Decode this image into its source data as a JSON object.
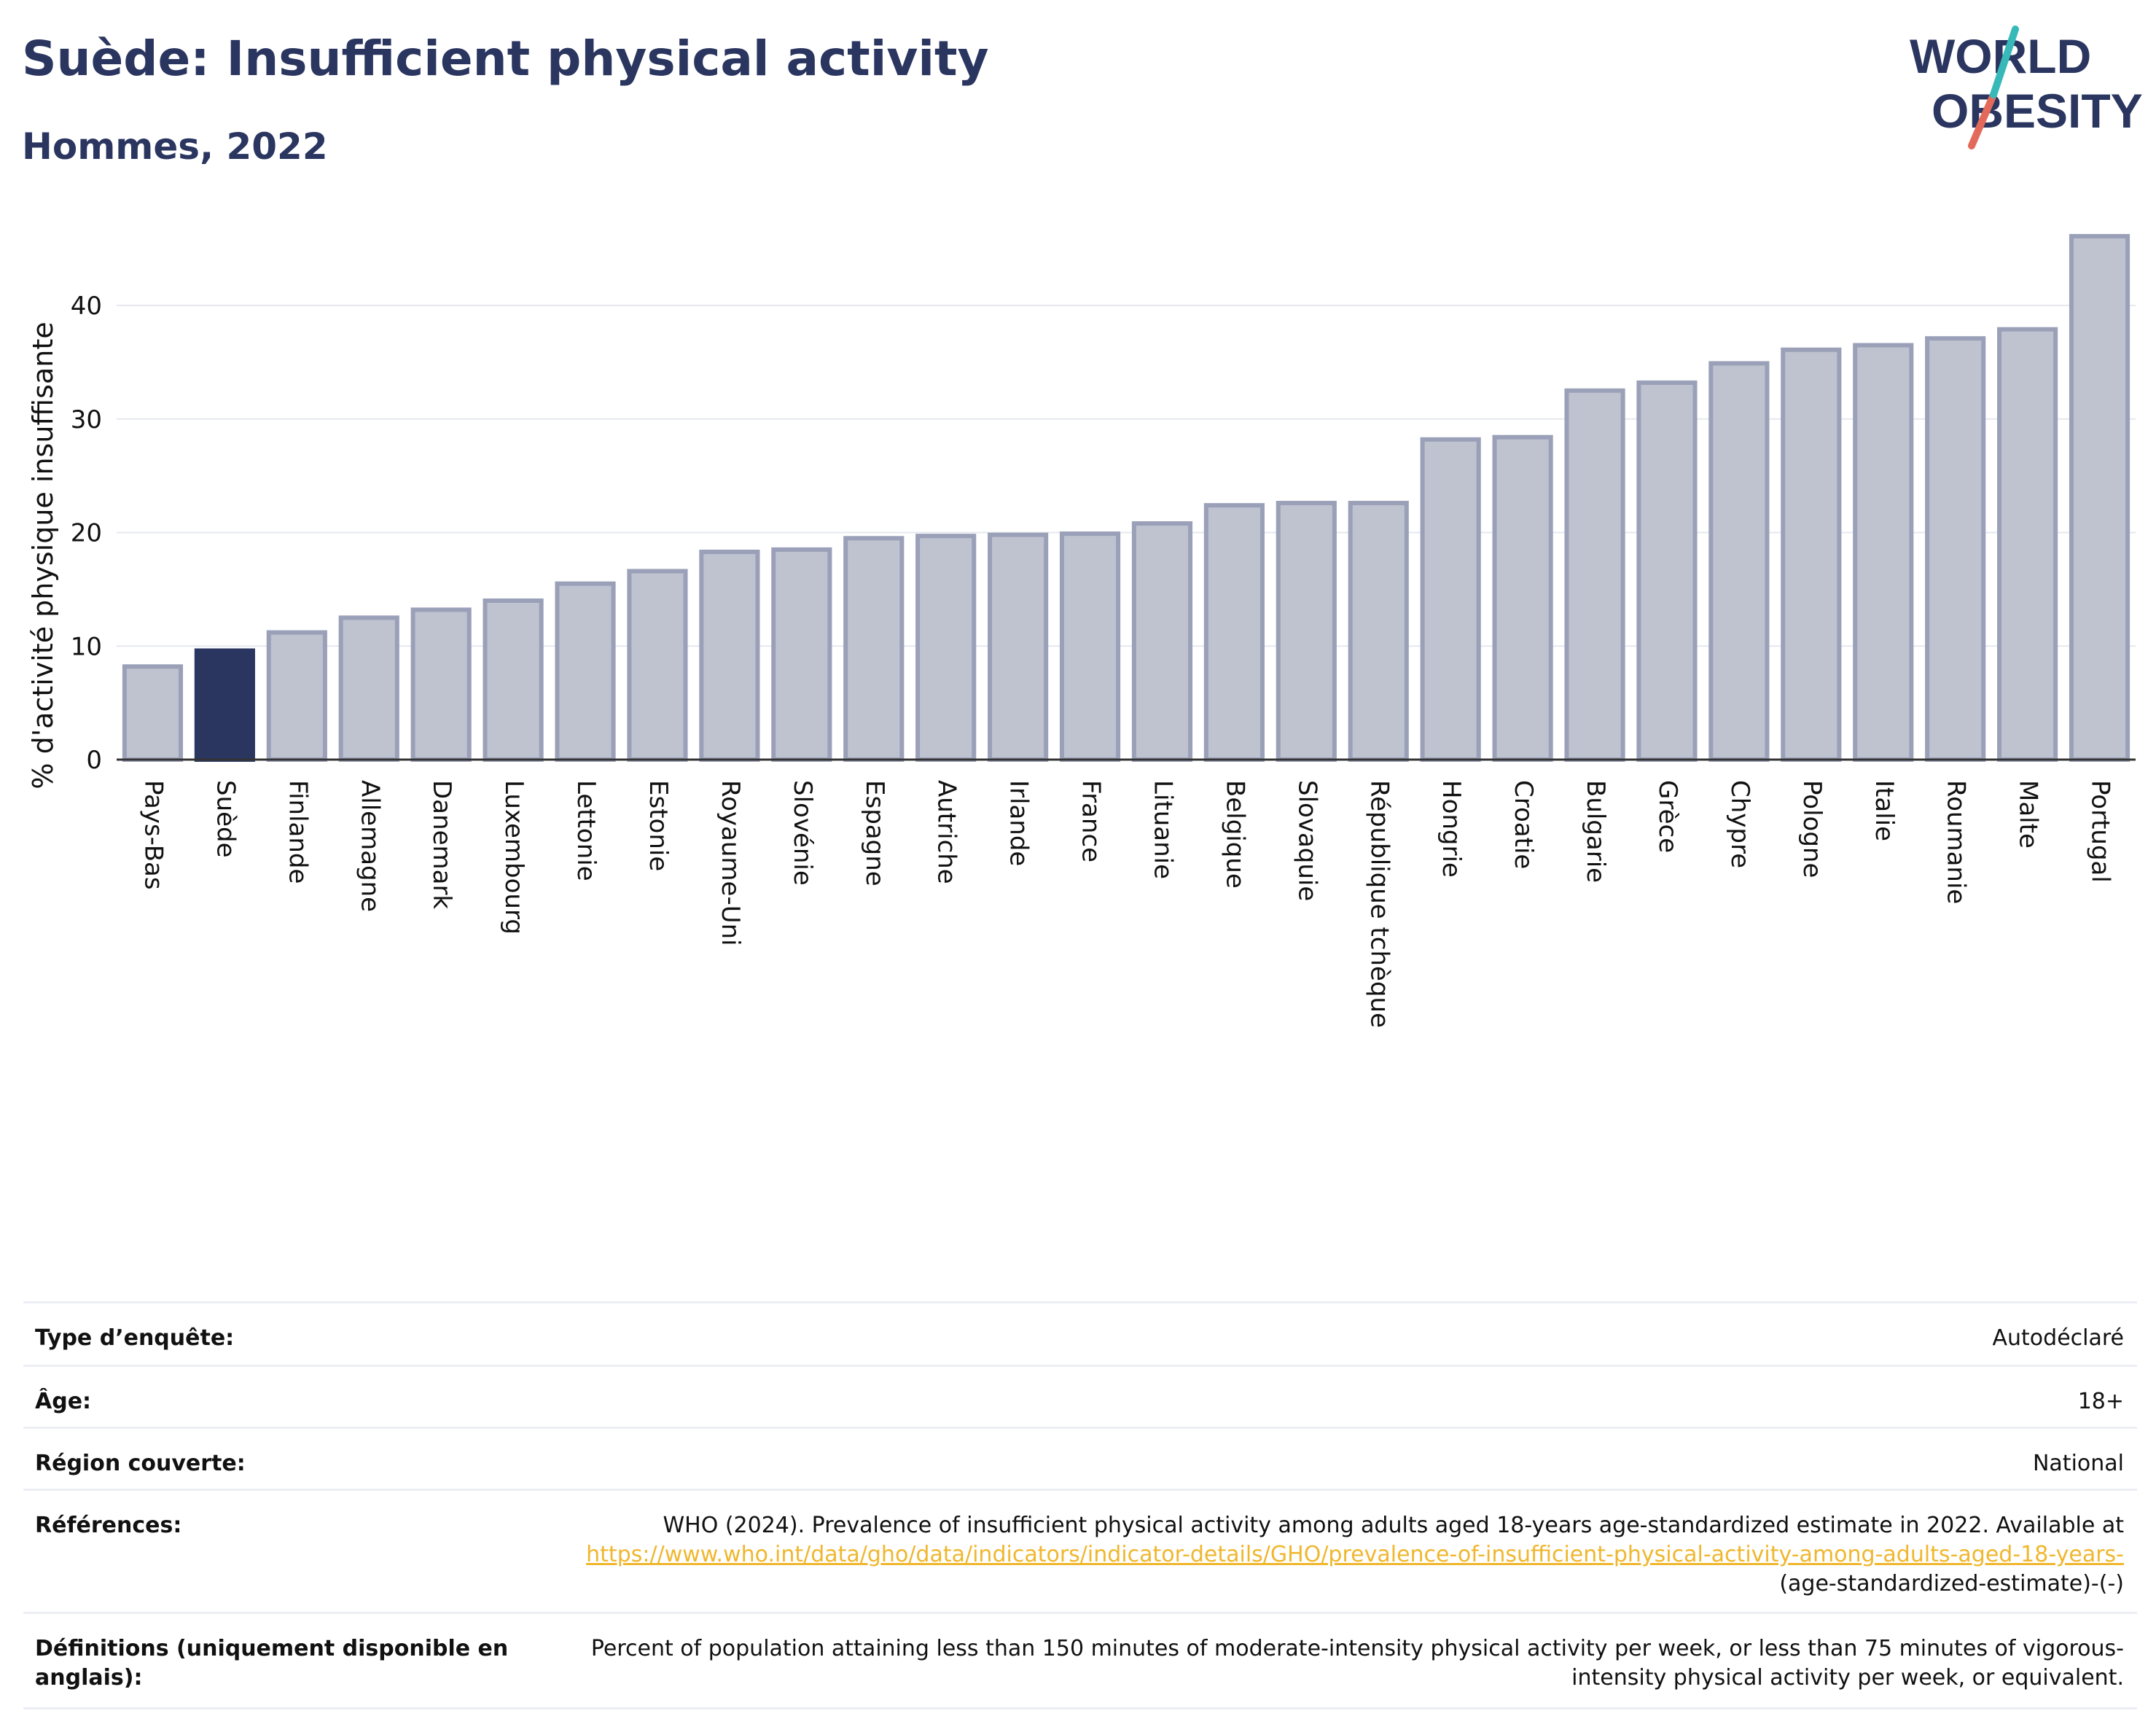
{
  "title": "Suède: Insufficient physical activity",
  "subtitle": "Hommes, 2022",
  "logo": {
    "line1": "WORLD",
    "line2": "OBESITY"
  },
  "colors": {
    "accent": "#2b3660",
    "bar_fill": "#bfc2cf",
    "bar_stroke": "#9aa0b8",
    "highlight": "#2b3660",
    "link": "#f0b72e",
    "logo_teal": "#37b9b9",
    "logo_red": "#e36a5a"
  },
  "chart_data": {
    "type": "bar",
    "title": "Suède: Insufficient physical activity",
    "subtitle": "Hommes, 2022",
    "xlabel": "",
    "ylabel": "% d'activité physique insuffisante",
    "ylim": [
      0,
      47
    ],
    "yticks": [
      0,
      10,
      20,
      30,
      40
    ],
    "grid": true,
    "highlight_category": "Suède",
    "categories": [
      "Pays-Bas",
      "Suède",
      "Finlande",
      "Allemagne",
      "Danemark",
      "Luxembourg",
      "Lettonie",
      "Estonie",
      "Royaume-Uni",
      "Slovénie",
      "Espagne",
      "Autriche",
      "Irlande",
      "France",
      "Lituanie",
      "Belgique",
      "Slovaquie",
      "République tchèque",
      "Hongrie",
      "Croatie",
      "Bulgarie",
      "Grèce",
      "Chypre",
      "Pologne",
      "Italie",
      "Roumanie",
      "Malte",
      "Portugal"
    ],
    "values": [
      8.2,
      9.6,
      11.2,
      12.5,
      13.2,
      14.0,
      15.5,
      16.6,
      18.3,
      18.5,
      19.5,
      19.7,
      19.8,
      19.9,
      20.8,
      22.4,
      22.6,
      22.6,
      28.2,
      28.4,
      32.5,
      33.2,
      34.9,
      36.1,
      36.5,
      37.1,
      37.9,
      46.1
    ]
  },
  "info": [
    {
      "label": "Type d’enquête:",
      "value": "Autodéclaré"
    },
    {
      "label": "Âge:",
      "value": "18+"
    },
    {
      "label": "Région couverte:",
      "value": "National"
    },
    {
      "label": "Références:",
      "value": "WHO (2024). Prevalence of insufficient physical activity among adults aged 18-years age-standardized estimate in 2022. Available at",
      "link": "https://www.who.int/data/gho/data/indicators/indicator-details/GHO/prevalence-of-insufficient-physical-activity-among-adults-aged-18-years-",
      "tail": "(age-standardized-estimate)-(-)"
    },
    {
      "label": "Définitions (uniquement disponible en anglais):",
      "value": "Percent of population attaining less than 150 minutes of moderate-intensity physical activity per week, or less than 75 minutes of vigorous-intensity physical activity per week, or equivalent."
    }
  ]
}
